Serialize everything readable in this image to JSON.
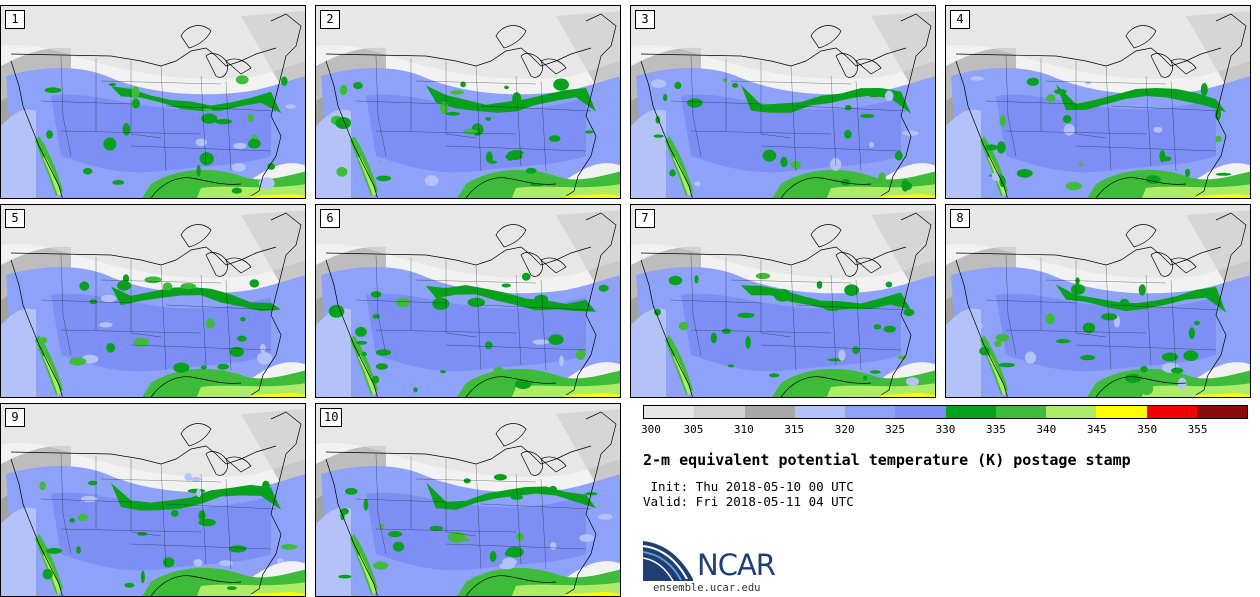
{
  "panels": [
    {
      "label": "1"
    },
    {
      "label": "2"
    },
    {
      "label": "3"
    },
    {
      "label": "4"
    },
    {
      "label": "5"
    },
    {
      "label": "6"
    },
    {
      "label": "7"
    },
    {
      "label": "8"
    },
    {
      "label": "9"
    },
    {
      "label": "10"
    }
  ],
  "colorbar": {
    "colors": [
      "#e6e6e6",
      "#d0d0d0",
      "#a8a8a8",
      "#b3c2f9",
      "#8ea2f9",
      "#7d8ff5",
      "#07a11c",
      "#3fbb3a",
      "#adec67",
      "#fefe00",
      "#f00000",
      "#8b0a0a"
    ],
    "ticks": [
      "300",
      "305",
      "310",
      "315",
      "320",
      "325",
      "330",
      "335",
      "340",
      "345",
      "350",
      "355"
    ]
  },
  "title": "2-m equivalent potential temperature (K) postage stamp",
  "init": " Init: Thu 2018-05-10 00 UTC",
  "valid": "Valid: Fri 2018-05-11 04 UTC",
  "logo": {
    "text": "NCAR",
    "site": "ensemble.ucar.edu"
  }
}
